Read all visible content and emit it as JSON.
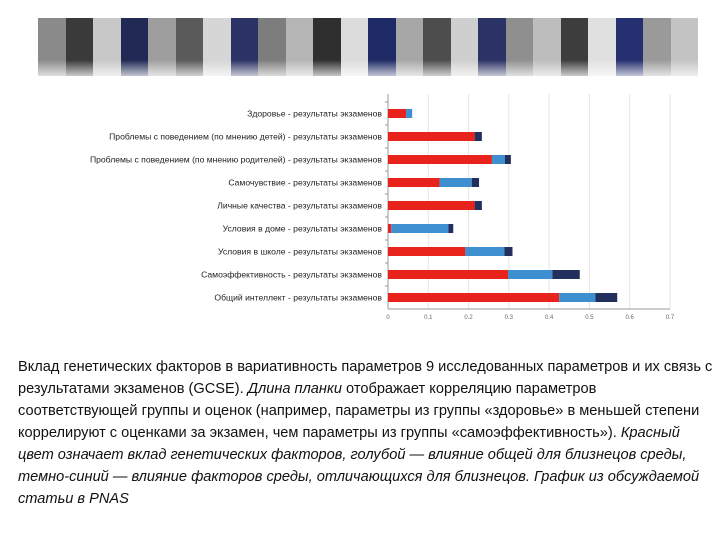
{
  "header_stripes": [
    "#8a8a8a",
    "#3a3a3a",
    "#c8c8c8",
    "#202a55",
    "#9e9e9e",
    "#5a5a5a",
    "#d6d6d6",
    "#2b3366",
    "#7d7d7d",
    "#b5b5b5",
    "#2f2f2f",
    "#dcdcdc",
    "#1f2b66",
    "#a7a7a7",
    "#4d4d4d",
    "#cfcfcf",
    "#2b3366",
    "#8f8f8f",
    "#bdbdbd",
    "#3d3d3d",
    "#e0e0e0",
    "#253070",
    "#9a9a9a",
    "#c4c4c4"
  ],
  "chart_data": {
    "type": "bar",
    "orientation": "horizontal",
    "stacked": true,
    "categories": [
      "Здоровье  - результаты экзаменов",
      "Проблемы с поведением (по мнению детей)  - результаты экзаменов",
      "Проблемы с поведением (по мнению родителей)  - результаты экзаменов",
      "Самочувствие  - результаты экзаменов",
      "Личные качества  - результаты экзаменов",
      "Условия в доме - результаты экзаменов",
      "Условия в школе - результаты экзаменов",
      "Самоэффективность  - результаты экзаменов",
      "Общий интеллект  - результаты экзаменов"
    ],
    "series": [
      {
        "color": "#e8231c",
        "values": [
          0.045,
          0.215,
          0.258,
          0.128,
          0.215,
          0.008,
          0.192,
          0.298,
          0.425
        ]
      },
      {
        "color": "#3e8fcf",
        "values": [
          0.015,
          0.0,
          0.032,
          0.08,
          0.0,
          0.142,
          0.097,
          0.11,
          0.09
        ]
      },
      {
        "color": "#23305e",
        "values": [
          0.0,
          0.018,
          0.015,
          0.018,
          0.018,
          0.012,
          0.02,
          0.068,
          0.054
        ]
      }
    ],
    "xlim": [
      0,
      0.7
    ],
    "xticks": [
      0,
      0.1,
      0.2,
      0.3,
      0.4,
      0.5,
      0.6,
      0.7
    ],
    "xtick_labels": [
      "0",
      "0.1",
      "0.2",
      "0.3",
      "0.4",
      "0.5",
      "0.6",
      "0.7"
    ],
    "grid": true,
    "legend": "none"
  },
  "caption": {
    "part1": "Вклад генетических факторов в вариативность параметров 9  исследованных параметров  и их связь с результатами экзаменов (GCSE). ",
    "part2": "Длина планки",
    "part3": " отображает корреляцию параметров соответствующей группы и оценок (например, параметры из группы «здоровье» в меньшей степени коррелируют с оценками за экзамен, чем параметры из группы «самоэффективность»). ",
    "part4": "Красный цвет означает вклад генетических факторов, голубой — влияние общей для близнецов среды, темно-синий — влияние факторов среды, отличающихся для близнецов. График из обсуждаемой статьи в PNAS"
  }
}
